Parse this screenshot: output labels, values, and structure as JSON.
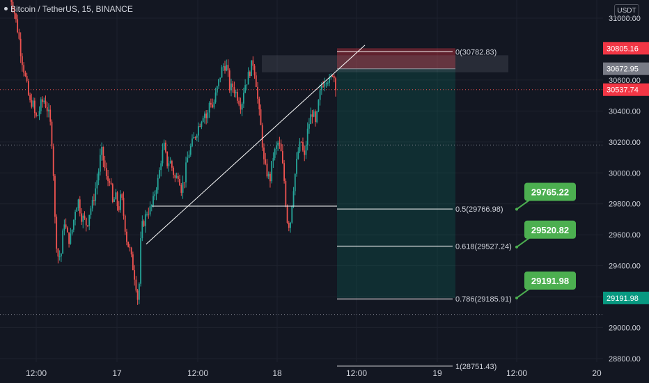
{
  "header": {
    "symbol_title": "Bitcoin / TetherUS, 15, BINANCE",
    "currency": "USDT"
  },
  "colors": {
    "background": "#131722",
    "grid": "#1e222d",
    "up": "#26a69a",
    "down": "#ef5350",
    "fib_line": "#ffffff",
    "stop_zone": "#f23645",
    "target_zone": "#089981",
    "callout": "#4caf50",
    "price_label_current": "#f23645",
    "price_label_gray": "#787b86",
    "price_label_teal": "#089981"
  },
  "chart_data": {
    "type": "candlestick",
    "y_axis": {
      "range": [
        28760,
        31140
      ],
      "ticks": [
        "31000.00",
        "30600.00",
        "30400.00",
        "30200.00",
        "30000.00",
        "29800.00",
        "29600.00",
        "29400.00",
        "29200.00",
        "29000.00",
        "28800.00"
      ]
    },
    "x_axis": {
      "ticks": [
        "12:00",
        "17",
        "12:00",
        "18",
        "12:00",
        "19",
        "12:00",
        "20"
      ]
    },
    "price_labels": [
      {
        "value": "30805.16",
        "kind": "stop"
      },
      {
        "value": "30672.95",
        "kind": "entry"
      },
      {
        "value": "30537.74",
        "kind": "current"
      },
      {
        "value": "29191.98",
        "kind": "target"
      }
    ],
    "fib_levels": [
      {
        "label": "0(30782.83)",
        "price": 30782.83
      },
      {
        "label": "0.5(29766.98)",
        "price": 29766.98
      },
      {
        "label": "0.618(29527.24)",
        "price": 29527.24
      },
      {
        "label": "0.786(29185.91)",
        "price": 29185.91
      },
      {
        "label": "1(28751.43)",
        "price": 28751.43
      }
    ],
    "callouts": [
      {
        "text": "29765.22",
        "price": 29765.22
      },
      {
        "text": "29520.82",
        "price": 29520.82
      },
      {
        "text": "29191.98",
        "price": 29191.98
      }
    ],
    "position": {
      "stop": 30805.16,
      "entry": 30672.95,
      "target": 29191.98,
      "current": 30537.74
    },
    "dotted_levels": [
      30537.74,
      30180,
      29085
    ],
    "horizontal_support": 29785,
    "trendline": {
      "start_price": 29540,
      "end_price": 30825
    },
    "resistance_box": {
      "top": 30760,
      "bottom": 30650
    },
    "path_points": [
      [
        31150,
        31100,
        31000,
        30900,
        30760,
        30660,
        30560,
        30450,
        30460,
        30350
      ],
      [
        30380,
        30450,
        30470,
        30420,
        30350,
        30150,
        29600,
        29450,
        29480,
        29700
      ],
      [
        29600,
        29560,
        29650,
        29780,
        29820,
        29720,
        29700,
        29660,
        29760,
        29800
      ],
      [
        29900,
        30000,
        30150,
        30060,
        29940,
        29970,
        29800,
        29850,
        29760,
        29860
      ],
      [
        29700,
        29560,
        29500,
        29400,
        29300,
        29150,
        29640,
        29690,
        29750,
        29760
      ],
      [
        29800,
        29900,
        29960,
        30100,
        30170,
        30060,
        30080,
        30020,
        29950,
        30000
      ],
      [
        29900,
        29950,
        30080,
        30150,
        30200,
        30250,
        30300,
        30350,
        30400,
        30340
      ],
      [
        30480,
        30420,
        30500,
        30580,
        30660,
        30700,
        30680,
        30540,
        30560,
        30520
      ],
      [
        30480,
        30430,
        30560,
        30600,
        30660,
        30720,
        30620,
        30420,
        30270,
        30050
      ],
      [
        30000,
        29950,
        30100,
        30150,
        30200,
        30120,
        29950,
        29700,
        29650,
        29870
      ],
      [
        30020,
        30150,
        30200,
        30080,
        30250,
        30350,
        30400,
        30300,
        30450,
        30560
      ],
      [
        30600,
        30620,
        30580,
        30660,
        30570
      ]
    ]
  }
}
